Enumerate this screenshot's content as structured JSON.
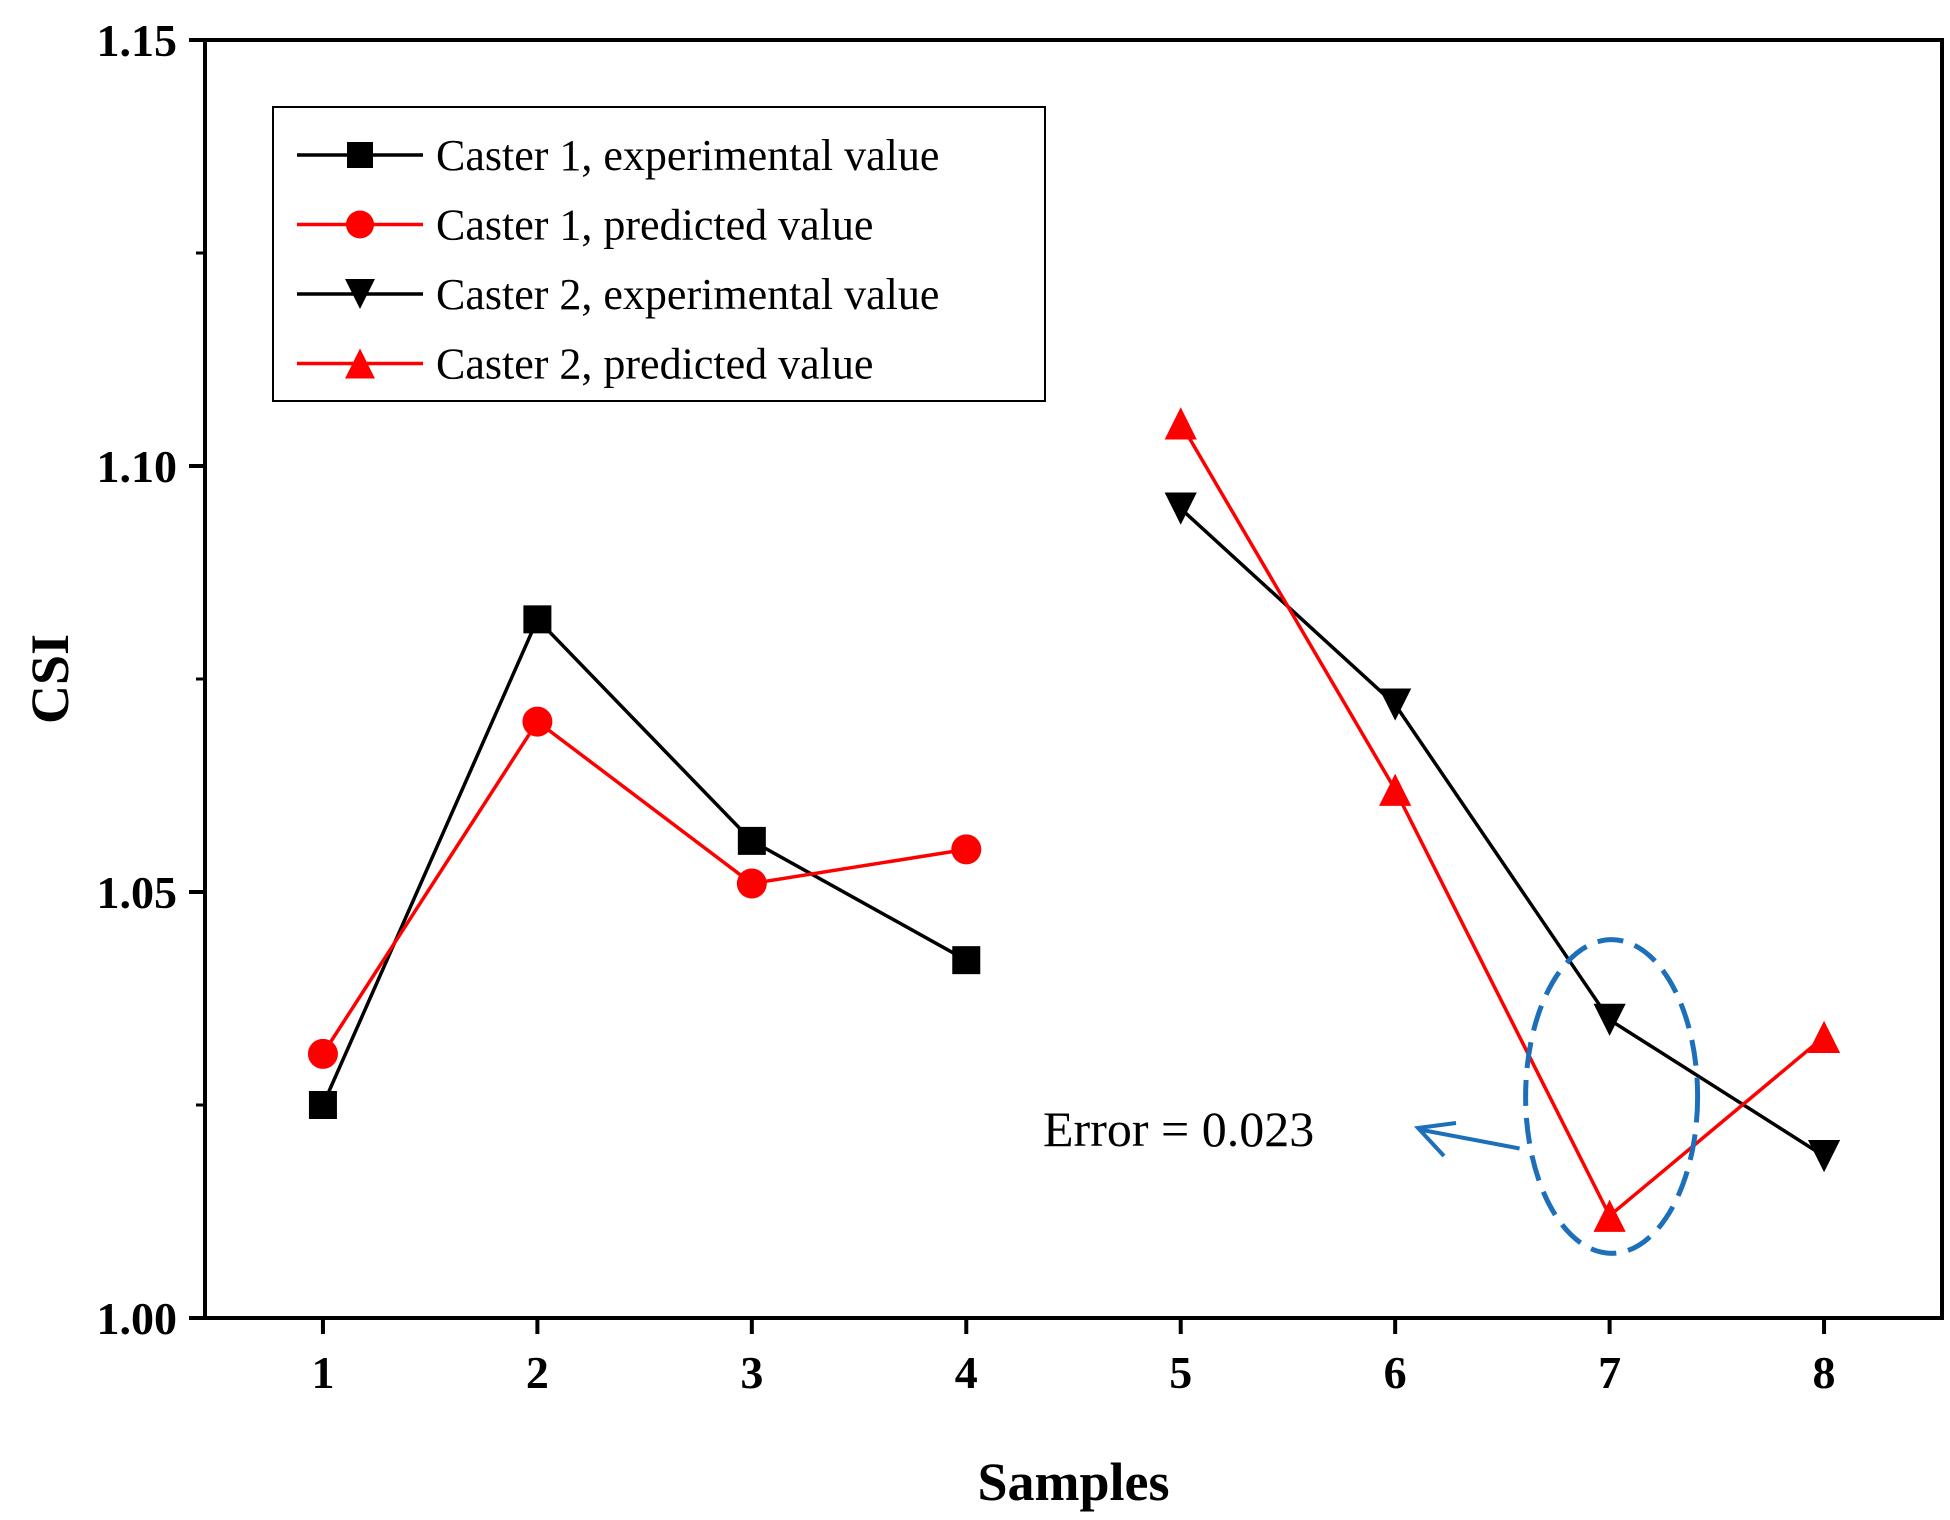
{
  "chart_data": {
    "type": "line",
    "title": "",
    "xlabel": "Samples",
    "ylabel": "CSI",
    "xlim": [
      0.45,
      8.55
    ],
    "ylim": [
      1.0,
      1.15
    ],
    "x_ticks": [
      1,
      2,
      3,
      4,
      5,
      6,
      7,
      8
    ],
    "y_ticks": [
      1.0,
      1.05,
      1.1,
      1.15
    ],
    "y_tick_labels": [
      "1.00",
      "1.05",
      "1.10",
      "1.15"
    ],
    "y_minor_ticks": [
      1.025,
      1.075,
      1.125
    ],
    "legend_position": "top-left",
    "series": [
      {
        "name": "Caster 1, experimental value",
        "color": "#000000",
        "marker": "square",
        "x": [
          1,
          2,
          3,
          4
        ],
        "values": [
          1.025,
          1.082,
          1.056,
          1.042
        ]
      },
      {
        "name": "Caster 1, predicted value",
        "color": "#ff0000",
        "marker": "circle",
        "x": [
          1,
          2,
          3,
          4
        ],
        "values": [
          1.031,
          1.07,
          1.051,
          1.055
        ]
      },
      {
        "name": "Caster 2, experimental value",
        "color": "#000000",
        "marker": "triangle-down",
        "x": [
          5,
          6,
          7,
          8
        ],
        "values": [
          1.095,
          1.072,
          1.035,
          1.019
        ]
      },
      {
        "name": "Caster 2, predicted value",
        "color": "#ff0000",
        "marker": "triangle-up",
        "x": [
          5,
          6,
          7,
          8
        ],
        "values": [
          1.105,
          1.062,
          1.012,
          1.033
        ]
      }
    ],
    "annotation": {
      "text": "Error = 0.023",
      "target_x": 7,
      "color": "#1e6fba",
      "highlight_range": [
        1.009,
        1.043
      ]
    }
  }
}
